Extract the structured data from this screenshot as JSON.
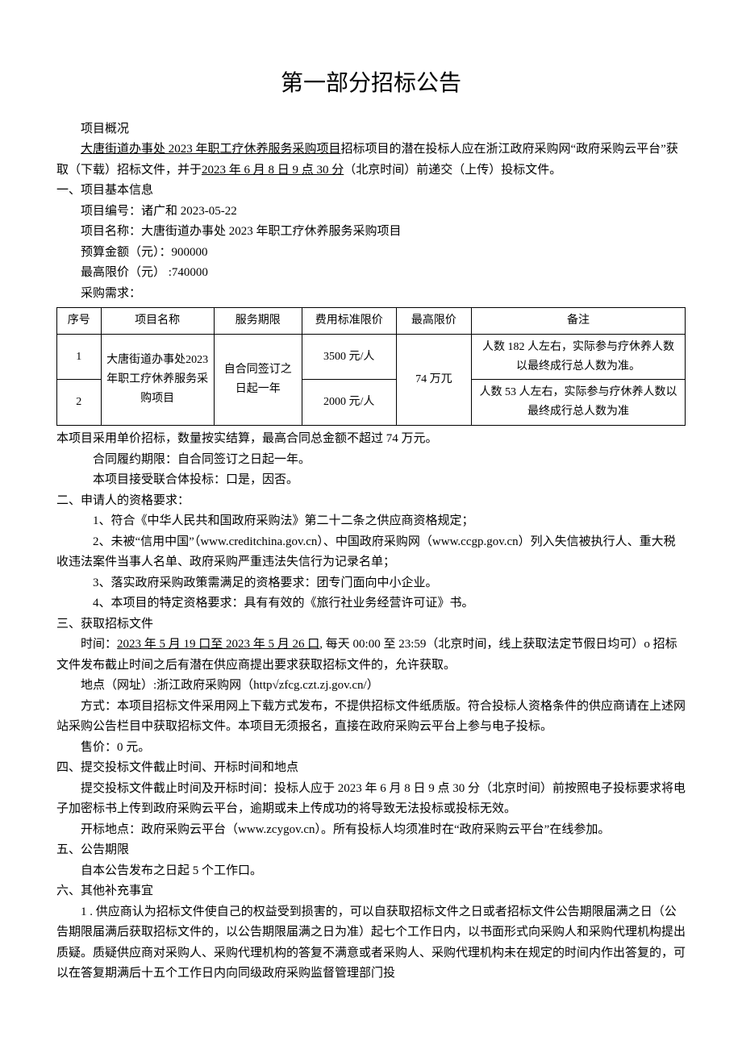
{
  "title": "第一部分招标公告",
  "overview_label": "项目概况",
  "intro_part1": "大唐街道办事处 2023 年职工疗休养服务采购项目",
  "intro_part2": "招标项目的潜在投标人应在浙江政府采购网“政府采购云平台”获取（下载）招标文件，并于",
  "intro_deadline": "2023 年 6 月 8 日 9 点 30 分",
  "intro_part3": "（北京时间）前递交（上传）投标文件。",
  "s1": {
    "heading": "一、项目基本信息",
    "proj_no": "项目编号：诸广和 2023-05-22",
    "proj_name": "项目名称：大唐街道办事处 2023 年职工疗休养服务采购项目",
    "budget": "预算金额（元）：900000",
    "max_price": "最高限价（元） :740000",
    "req_label": "采购需求："
  },
  "table": {
    "headers": {
      "seq": "序号",
      "name": "项目名称",
      "period": "服务期限",
      "price": "费用标准限价",
      "max": "最高限价",
      "note": "备注"
    },
    "merged": {
      "name": "大唐街道办事处2023 年职工疗休养服务采购项目",
      "period": "自合同签订之日起一年",
      "max": "74 万兀"
    },
    "rows": [
      {
        "seq": "1",
        "price": "3500 元/人",
        "note": "人数 182 人左右，实际参与疗休养人数以最终成行总人数为准。"
      },
      {
        "seq": "2",
        "price": "2000 元/人",
        "note": "人数 53 人左右，实际参与疗休养人数以最终成行总人数为准"
      }
    ]
  },
  "after_table": "本项目采用单价招标，数量按实结算，最高合同总金额不超过 74 万元。",
  "contract_period": "合同履约期限：自合同签订之日起一年。",
  "joint_bid": "本项目接受联合体投标：口是，因否。",
  "s2": {
    "heading": "二、申请人的资格要求：",
    "r1": "1、符合《中华人民共和国政府采购法》第二十二条之供应商资格规定；",
    "r2": "2、未被“信用中国”（www.creditchina.gov.cn）、中国政府采购网（www.ccgp.gov.cn）列入失信被执行人、重大税收违法案件当事人名单、政府采购严重违法失信行为记录名单；",
    "r3": "3、落实政府采购政策需满足的资格要求：团专门面向中小企业。",
    "r4": "4、本项目的特定资格要求：具有有效的《旅行社业务经营许可证》书。"
  },
  "s3": {
    "heading": "三、获取招标文件",
    "time_pre": "时间：",
    "time_range": "2023 年 5 月 19 口至 2023 年 5 月 26 口",
    "time_post": ", 每天 00:00 至 23:59（北京时间，线上获取法定节假日均可）o 招标文件发布截止时间之后有潜在供应商提出要求获取招标文件的，允许获取。",
    "addr": "地点（网址）:浙江政府采购网（http√zfcg.czt.zj.gov.cn/）",
    "method": "方式：本项目招标文件采用网上下载方式发布，不提供招标文件纸质版。符合投标人资格条件的供应商请在上述网站采购公告栏目中获取招标文件。本项目无须报名，直接在政府采购云平台上参与电子投标。",
    "price": "售价：0 元。"
  },
  "s4": {
    "heading": "四、提交投标文件截止时间、开标时间和地点",
    "deadline": "提交投标文件截止时间及开标时间：投标人应于 2023 年 6 月 8 日 9 点 30 分（北京时间）前按照电子投标要求将电子加密标书上传到政府采购云平台，逾期或未上传成功的将导致无法投标或投标无效。",
    "location": "开标地点：政府采购云平台（www.zcygov.cn）。所有投标人均须准时在“政府采购云平台”在线参加。"
  },
  "s5": {
    "heading": "五、公告期限",
    "body": "自本公告发布之日起 5 个工作口。"
  },
  "s6": {
    "heading": "六、其他补充事宜",
    "p1": "1 . 供应商认为招标文件使自己的权益受到损害的，可以自获取招标文件之日或者招标文件公告期限届满之日（公告期限届满后获取招标文件的，以公告期限届满之日为准）起七个工作日内，以书面形式向采购人和采购代理机构提出质疑。质疑供应商对采购人、采购代理机构的答复不满意或者采购人、采购代理机构未在规定的时间内作出答复的，可以在答复期满后十五个工作日内向同级政府采购监督管理部门投"
  }
}
